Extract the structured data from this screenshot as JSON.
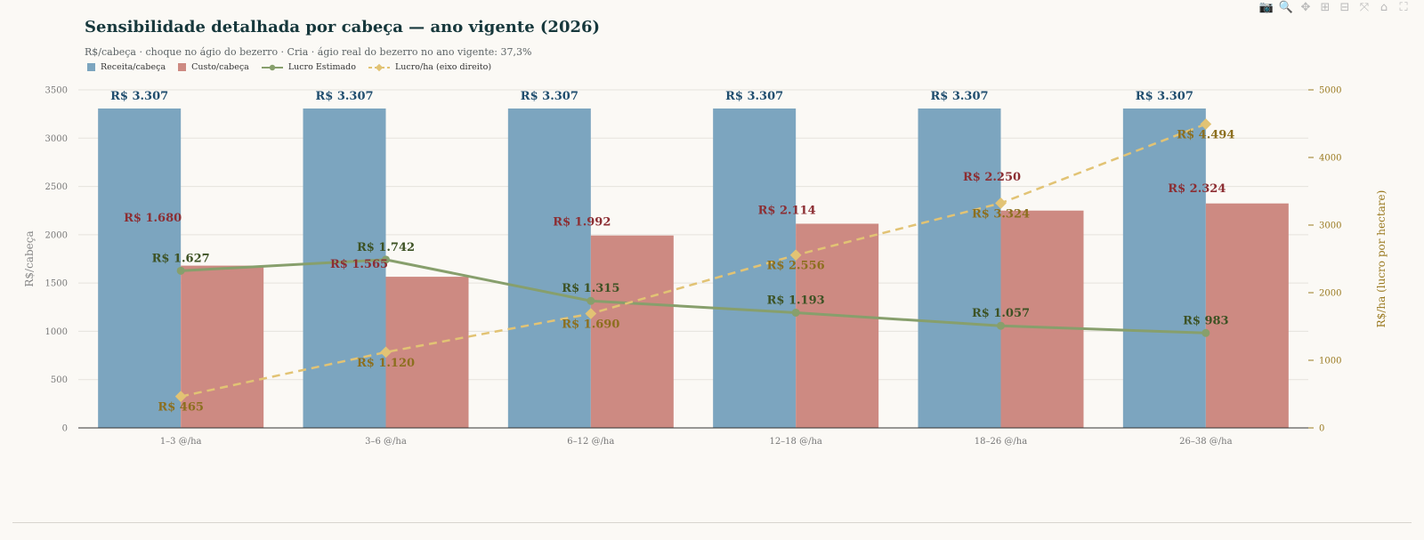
{
  "title": "Sensibilidade detalhada por cabeça — ano vigente (2026)",
  "subtitle": "R$/cabeça · choque no ágio do bezerro · Cria · ágio real do bezerro no ano vigente: 37,3%",
  "modebar": [
    {
      "name": "camera-icon",
      "glyph": "📷"
    },
    {
      "name": "zoom-icon",
      "glyph": "🔍"
    },
    {
      "name": "pan-icon",
      "glyph": "✥"
    },
    {
      "name": "zoom-in-icon",
      "glyph": "⊞"
    },
    {
      "name": "zoom-out-icon",
      "glyph": "⊟"
    },
    {
      "name": "autoscale-icon",
      "glyph": "⤧"
    },
    {
      "name": "home-icon",
      "glyph": "⌂"
    },
    {
      "name": "fullscreen-icon",
      "glyph": "⛶"
    }
  ],
  "colors": {
    "receita": "#7ca5bf",
    "custo": "#cd8a82",
    "lucro": "#879f6c",
    "lucro_ha": "#e2c374",
    "receita_label": "#1f4d6e",
    "custo_label": "#8c2e33",
    "lucro_label": "#3d5224",
    "lucro_ha_label": "#8c6f1f",
    "axis_left": "#777777",
    "axis_right": "#9a7a20"
  },
  "chart_data": {
    "type": "bar",
    "categories": [
      "1–3 @/ha",
      "3–6 @/ha",
      "6–12 @/ha",
      "12–18 @/ha",
      "18–26 @/ha",
      "26–38 @/ha"
    ],
    "series": [
      {
        "name": "Receita/cabeça",
        "type": "bar",
        "axis": "left",
        "values": [
          3307,
          3307,
          3307,
          3307,
          3307,
          3307
        ],
        "labels": [
          "R$ 3.307",
          "R$ 3.307",
          "R$ 3.307",
          "R$ 3.307",
          "R$ 3.307",
          "R$ 3.307"
        ]
      },
      {
        "name": "Custo/cabeça",
        "type": "bar",
        "axis": "left",
        "values": [
          1680,
          1565,
          1992,
          2114,
          2250,
          2324
        ],
        "labels": [
          "R$ 1.680",
          "R$ 1.565",
          "R$ 1.992",
          "R$ 2.114",
          "R$ 2.250",
          "R$ 2.324"
        ]
      },
      {
        "name": "Lucro Estimado",
        "type": "line",
        "axis": "left",
        "values": [
          1627,
          1742,
          1315,
          1193,
          1057,
          983
        ],
        "labels": [
          "R$ 1.627",
          "R$ 1.742",
          "R$ 1.315",
          "R$ 1.193",
          "R$ 1.057",
          "R$ 983"
        ]
      },
      {
        "name": "Lucro/ha (eixo direito)",
        "type": "line",
        "axis": "right",
        "dash": true,
        "values": [
          465,
          1120,
          1690,
          2556,
          3324,
          4494
        ],
        "labels": [
          "R$ 465",
          "R$ 1.120",
          "R$ 1.690",
          "R$ 2.556",
          "R$ 3.324",
          "R$ 4.494"
        ]
      }
    ],
    "ylabel": "R$/cabeça",
    "ylim": [
      0,
      3500
    ],
    "yticks": [
      0,
      500,
      1000,
      1500,
      2000,
      2500,
      3000,
      3500
    ],
    "y2label": "R$/ha (lucro por hectare)",
    "y2lim": [
      0,
      5000
    ],
    "y2ticks": [
      0,
      1000,
      2000,
      3000,
      4000,
      5000
    ],
    "grid": true,
    "legend": "top-left"
  }
}
